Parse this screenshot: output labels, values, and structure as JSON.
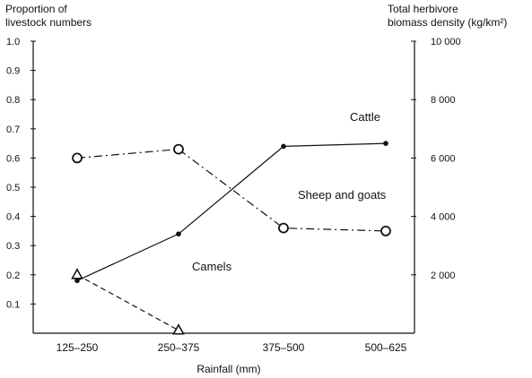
{
  "chart_data": {
    "type": "line",
    "title": "",
    "xlabel": "Rainfall (mm)",
    "ylabel_left": [
      "Proportion of",
      "livestock numbers"
    ],
    "ylabel_right": [
      "Total herbivore",
      "biomass density (kg/km²)"
    ],
    "categories": [
      "125–250",
      "250–375",
      "375–500",
      "500–625"
    ],
    "ylim_left": [
      0,
      1.0
    ],
    "ylim_right": [
      0,
      10000
    ],
    "yticks_left": [
      "0.1",
      "0.2",
      "0.3",
      "0.4",
      "0.5",
      "0.6",
      "0.7",
      "0.8",
      "0.9",
      "1.0"
    ],
    "yticks_right": [
      "2 000",
      "4 000",
      "6 000",
      "8 000",
      "10 000"
    ],
    "grid": false,
    "series": [
      {
        "name": "Cattle",
        "axis": "left",
        "line": "solid",
        "marker": "dot",
        "values": [
          0.18,
          0.34,
          0.64,
          0.65
        ]
      },
      {
        "name": "Sheep and goats",
        "axis": "left",
        "line": "dashdot",
        "marker": "open-circle",
        "values": [
          0.6,
          0.63,
          0.36,
          0.35
        ]
      },
      {
        "name": "Camels",
        "axis": "left",
        "line": "dashed",
        "marker": "open-triangle",
        "values": [
          0.2,
          0.01,
          null,
          null
        ]
      }
    ]
  }
}
